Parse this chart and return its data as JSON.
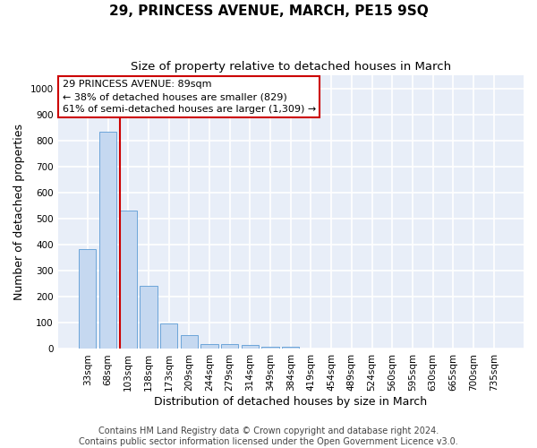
{
  "title": "29, PRINCESS AVENUE, MARCH, PE15 9SQ",
  "subtitle": "Size of property relative to detached houses in March",
  "xlabel": "Distribution of detached houses by size in March",
  "ylabel": "Number of detached properties",
  "bar_labels": [
    "33sqm",
    "68sqm",
    "103sqm",
    "138sqm",
    "173sqm",
    "209sqm",
    "244sqm",
    "279sqm",
    "314sqm",
    "349sqm",
    "384sqm",
    "419sqm",
    "454sqm",
    "489sqm",
    "524sqm",
    "560sqm",
    "595sqm",
    "630sqm",
    "665sqm",
    "700sqm",
    "735sqm"
  ],
  "bar_values": [
    385,
    835,
    530,
    242,
    97,
    52,
    20,
    18,
    15,
    10,
    8,
    0,
    0,
    0,
    0,
    0,
    0,
    0,
    0,
    0,
    0
  ],
  "bar_color": "#c5d8f0",
  "bar_edge_color": "#5b9bd5",
  "annotation_line1": "29 PRINCESS AVENUE: 89sqm",
  "annotation_line2": "← 38% of detached houses are smaller (829)",
  "annotation_line3": "61% of semi-detached houses are larger (1,309) →",
  "annotation_box_facecolor": "#ffffff",
  "annotation_box_edgecolor": "#cc0000",
  "vline_color": "#cc0000",
  "ylim": [
    0,
    1050
  ],
  "yticks": [
    0,
    100,
    200,
    300,
    400,
    500,
    600,
    700,
    800,
    900,
    1000
  ],
  "fig_bg": "#ffffff",
  "plot_bg": "#e8eef8",
  "grid_color": "#ffffff",
  "title_fontsize": 11,
  "subtitle_fontsize": 9.5,
  "xlabel_fontsize": 9,
  "ylabel_fontsize": 9,
  "tick_fontsize": 7.5,
  "annotation_fontsize": 8,
  "footer_fontsize": 7,
  "footer_line1": "Contains HM Land Registry data © Crown copyright and database right 2024.",
  "footer_line2": "Contains public sector information licensed under the Open Government Licence v3.0."
}
